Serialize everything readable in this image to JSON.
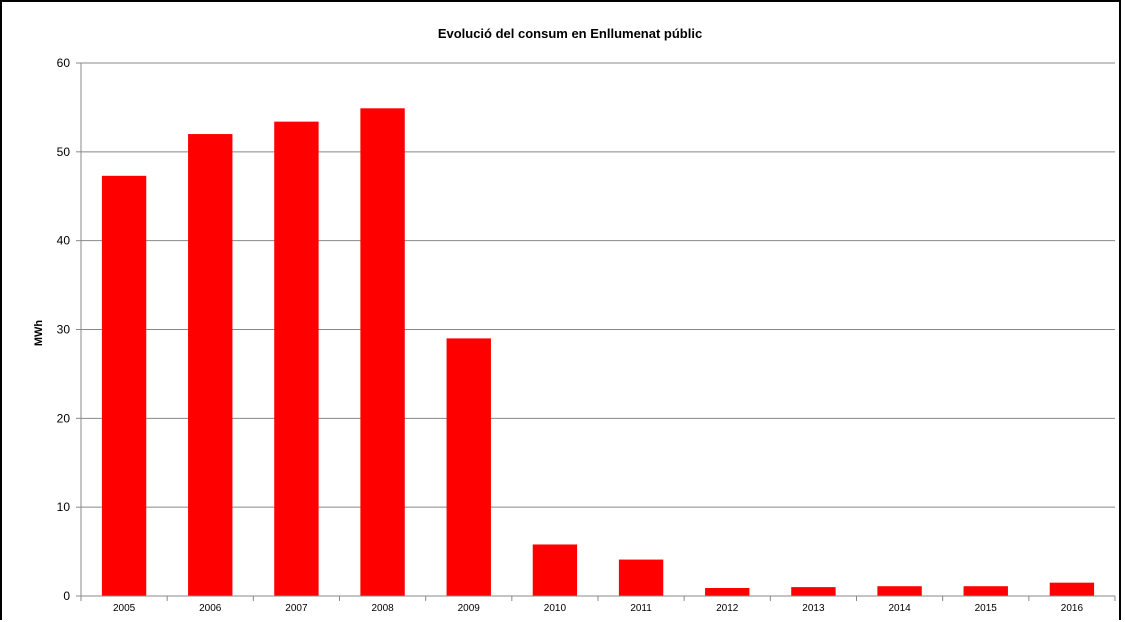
{
  "chart_data": {
    "type": "bar",
    "title": "Evolució del consum  en Enllumenat públic",
    "xlabel": "",
    "ylabel": "MWh",
    "categories": [
      "2005",
      "2006",
      "2007",
      "2008",
      "2009",
      "2010",
      "2011",
      "2012",
      "2013",
      "2014",
      "2015",
      "2016"
    ],
    "series": [
      {
        "values": [
          47.3,
          52.0,
          53.4,
          54.9,
          29.0,
          5.8,
          4.1,
          0.9,
          1.0,
          1.1,
          1.1,
          1.5
        ],
        "color": "#ff0000"
      }
    ],
    "ylim": [
      0,
      60
    ],
    "yticks": [
      "0",
      "10",
      "20",
      "30",
      "40",
      "50",
      "60"
    ],
    "grid": true,
    "legend": "none"
  }
}
